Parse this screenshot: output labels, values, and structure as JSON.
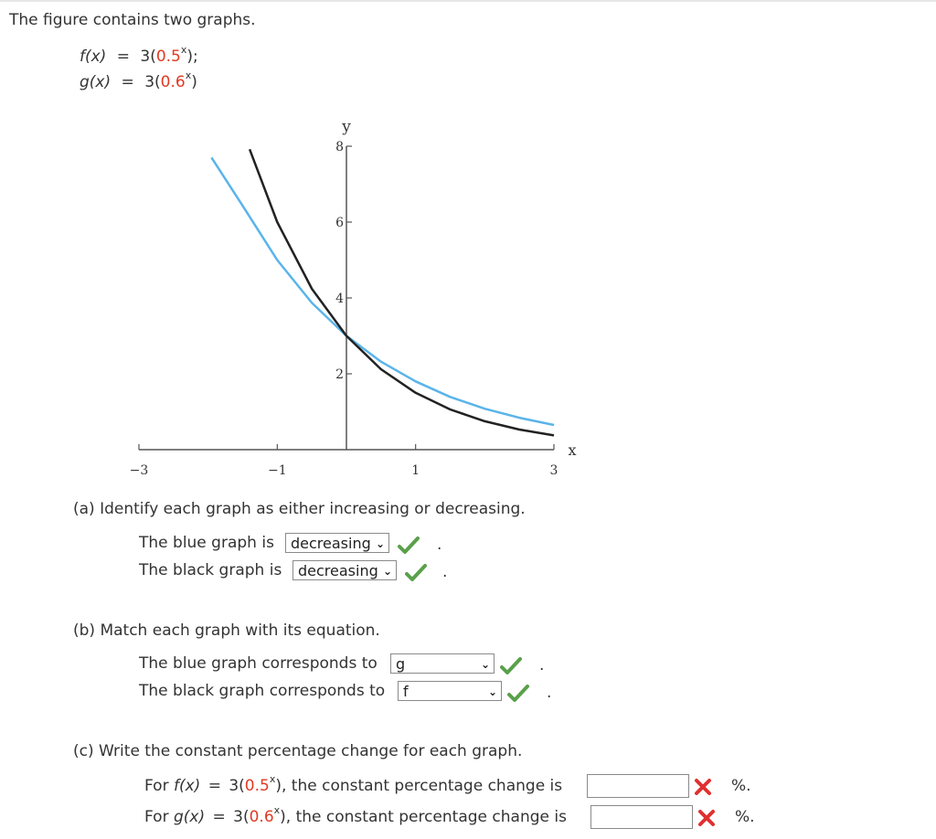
{
  "intro": "The figure contains two graphs.",
  "equations": {
    "f": {
      "lhs": "f(x)",
      "eq": "=",
      "coef": "3(",
      "base": "0.5",
      "exp": "x",
      "close": ");"
    },
    "g": {
      "lhs": "g(x)",
      "eq": "=",
      "coef": "3(",
      "base": "0.6",
      "exp": "x",
      "close": ")"
    }
  },
  "chart_data": {
    "type": "line",
    "xlabel": "x",
    "ylabel": "y",
    "xlim": [
      -3,
      3
    ],
    "ylim": [
      0,
      8
    ],
    "x_ticks": [
      "-3",
      "-1",
      "1",
      "3"
    ],
    "y_ticks": [
      "2",
      "4",
      "6",
      "8"
    ],
    "colors": {
      "blue": "#5ab4ea",
      "black": "#222222"
    },
    "series": [
      {
        "x": [
          -1.95,
          -1.5,
          -1,
          -0.5,
          0,
          0.5,
          1,
          1.5,
          2,
          2.5,
          3
        ],
        "y": [
          7.7,
          6.43,
          5.0,
          3.87,
          3.0,
          2.32,
          1.8,
          1.39,
          1.08,
          0.84,
          0.65
        ]
      },
      {
        "x": [
          -1.4,
          -1,
          -0.5,
          0,
          0.5,
          1,
          1.5,
          2,
          2.5,
          3
        ],
        "y": [
          7.92,
          6.0,
          4.24,
          3.0,
          2.12,
          1.5,
          1.06,
          0.75,
          0.53,
          0.375
        ]
      }
    ]
  },
  "part_a": {
    "prompt": "(a) Identify each graph as either increasing or decreasing.",
    "blue_label": "The blue graph is",
    "blue_value": "decreasing",
    "black_label": "The black graph is",
    "black_value": "decreasing",
    "period": "."
  },
  "part_b": {
    "prompt": "(b) Match each graph with its equation.",
    "blue_label": "The blue graph corresponds to",
    "blue_value": "g",
    "black_label": "The black graph corresponds to",
    "black_value": "f",
    "period": "."
  },
  "part_c": {
    "prompt": "(c) Write the constant percentage change for each graph.",
    "row1": {
      "pre": "For",
      "fn": "f(x)",
      "eq": "=",
      "coef": "3(",
      "base": "0.5",
      "exp": "x",
      "close": "), the constant percentage change is",
      "value": "",
      "unit": "%."
    },
    "row2": {
      "pre": "For",
      "fn": "g(x)",
      "eq": "=",
      "coef": "3(",
      "base": "0.6",
      "exp": "x",
      "close": "), the constant percentage change is",
      "value": "",
      "unit": "%."
    }
  },
  "feedback": {
    "correct_color": "#5aa04a",
    "incorrect_color": "#e03030"
  }
}
